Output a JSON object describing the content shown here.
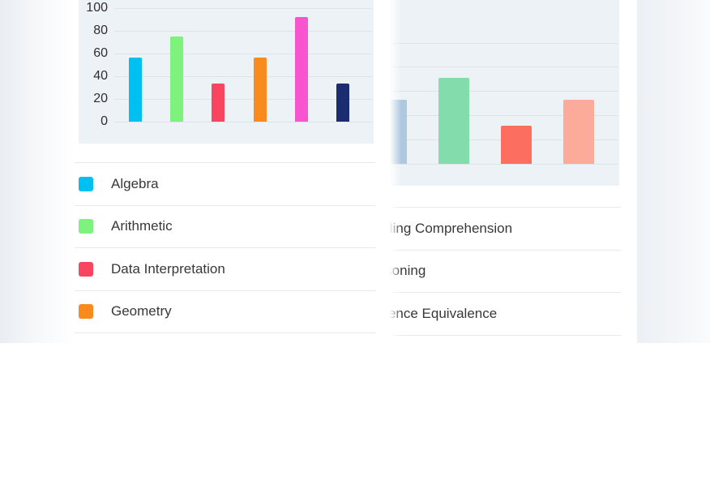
{
  "chart_data": [
    {
      "id": "left-topics-chart",
      "type": "bar",
      "title": "",
      "xlabel": "",
      "ylabel": "",
      "ylim": [
        0,
        100
      ],
      "yticks": [
        0,
        20,
        40,
        60,
        80,
        100
      ],
      "grid": true,
      "legend_position": "bottom-list",
      "categories": [
        "Algebra",
        "Arithmetic",
        "Data Interpretation",
        "Geometry",
        "",
        ""
      ],
      "values": [
        56,
        75,
        33,
        56,
        92,
        33
      ],
      "colors": [
        "#00c0f2",
        "#7df27d",
        "#f9455f",
        "#f98a1d",
        "#f655cf",
        "#1b2c71"
      ],
      "legend_labels": [
        "Algebra",
        "Arithmetic",
        "Data Interpretation",
        "Geometry"
      ],
      "legend_swatches": true,
      "plot_background": "#edf2f7",
      "gridline_color": "#dde3e8"
    },
    {
      "id": "right-topics-chart",
      "type": "bar",
      "title": "",
      "xlabel": "",
      "ylabel": "",
      "ylim": [
        0,
        100
      ],
      "yticks": [],
      "grid": true,
      "legend_position": "bottom-list",
      "categories": [
        "Reading Comprehension",
        "Reasoning",
        "Sentence Equivalence",
        ""
      ],
      "values": [
        53,
        71,
        31,
        53
      ],
      "colors": [
        "#aec8de",
        "#82dcab",
        "#fc6f60",
        "#fcab9b"
      ],
      "legend_labels": [
        "Reading Comprehension",
        "Reasoning",
        "Sentence Equivalence"
      ],
      "legend_swatches": false,
      "plot_background": "#edf2f7",
      "gridline_color": "#dde3e8"
    }
  ]
}
